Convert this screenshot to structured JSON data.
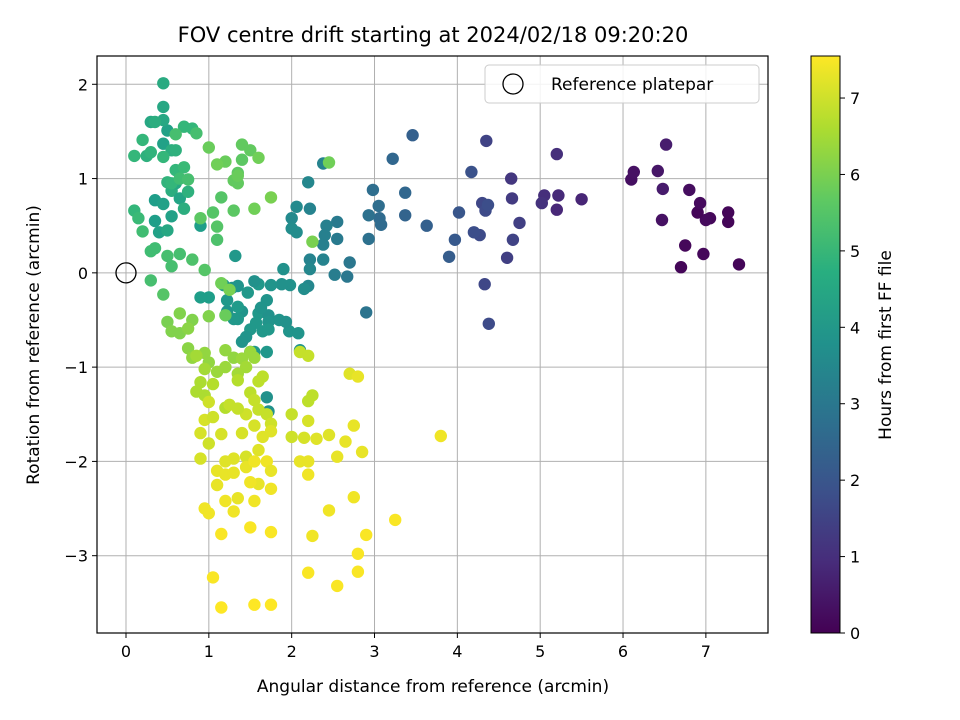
{
  "chart_data": {
    "type": "scatter",
    "title": "FOV centre drift starting at 2024/02/18 09:20:20",
    "xlabel": "Angular distance from reference (arcmin)",
    "ylabel": "Rotation from reference (arcmin)",
    "xlim": [
      -0.35,
      7.75
    ],
    "ylim": [
      -3.82,
      2.3
    ],
    "xticks": [
      0,
      1,
      2,
      3,
      4,
      5,
      6,
      7
    ],
    "yticks": [
      -3,
      -2,
      -1,
      0,
      1,
      2
    ],
    "grid": true,
    "legend": {
      "position": "top-right",
      "entries": [
        "Reference platepar"
      ]
    },
    "reference_point": {
      "x": 0,
      "y": 0
    },
    "colorbar": {
      "label": "Hours from first FF file",
      "colormap": "viridis",
      "range": [
        0,
        7.55
      ],
      "ticks": [
        0,
        1,
        2,
        3,
        4,
        5,
        6,
        7
      ]
    },
    "points": [
      [
        7.4,
        0.09,
        0.1
      ],
      [
        6.7,
        0.06,
        0.1
      ],
      [
        6.97,
        0.2,
        0.15
      ],
      [
        6.75,
        0.29,
        0.15
      ],
      [
        7.27,
        0.54,
        0.1
      ],
      [
        7.27,
        0.64,
        0.1
      ],
      [
        7.05,
        0.58,
        0.15
      ],
      [
        7.0,
        0.56,
        0.2
      ],
      [
        6.9,
        0.64,
        0.1
      ],
      [
        6.93,
        0.74,
        0.2
      ],
      [
        6.8,
        0.88,
        0.25
      ],
      [
        6.47,
        0.56,
        0.35
      ],
      [
        6.1,
        0.99,
        0.3
      ],
      [
        6.13,
        1.07,
        0.35
      ],
      [
        6.42,
        1.08,
        0.45
      ],
      [
        6.48,
        0.89,
        0.55
      ],
      [
        6.52,
        1.36,
        0.6
      ],
      [
        5.5,
        0.78,
        0.8
      ],
      [
        5.2,
        0.67,
        0.85
      ],
      [
        5.22,
        0.82,
        0.9
      ],
      [
        5.05,
        0.82,
        1.0
      ],
      [
        5.02,
        0.74,
        1.1
      ],
      [
        5.2,
        1.26,
        1.0
      ],
      [
        4.65,
        1.0,
        1.2
      ],
      [
        4.66,
        0.79,
        1.3
      ],
      [
        4.75,
        0.53,
        1.4
      ],
      [
        4.67,
        0.35,
        1.5
      ],
      [
        4.6,
        0.16,
        1.4
      ],
      [
        4.35,
        1.4,
        1.5
      ],
      [
        4.3,
        0.74,
        1.6
      ],
      [
        4.34,
        0.66,
        1.7
      ],
      [
        4.37,
        0.72,
        1.8
      ],
      [
        4.27,
        0.4,
        1.7
      ],
      [
        4.2,
        0.43,
        1.8
      ],
      [
        4.33,
        -0.12,
        1.6
      ],
      [
        4.38,
        -0.54,
        1.7
      ],
      [
        4.17,
        1.07,
        1.9
      ],
      [
        4.02,
        0.64,
        2.0
      ],
      [
        3.97,
        0.35,
        2.1
      ],
      [
        3.9,
        0.17,
        2.2
      ],
      [
        3.46,
        1.46,
        2.3
      ],
      [
        3.63,
        0.5,
        2.3
      ],
      [
        3.37,
        0.85,
        2.5
      ],
      [
        3.37,
        0.61,
        2.4
      ],
      [
        3.22,
        1.21,
        2.5
      ],
      [
        3.06,
        0.58,
        2.6
      ],
      [
        3.05,
        0.71,
        2.7
      ],
      [
        3.08,
        0.51,
        2.6
      ],
      [
        2.98,
        0.88,
        2.7
      ],
      [
        2.93,
        0.61,
        2.8
      ],
      [
        2.93,
        0.36,
        2.8
      ],
      [
        2.9,
        -0.42,
        2.9
      ],
      [
        2.7,
        0.11,
        3.0
      ],
      [
        2.67,
        -0.04,
        3.0
      ],
      [
        2.55,
        0.54,
        3.1
      ],
      [
        2.55,
        0.36,
        3.1
      ],
      [
        2.52,
        -0.02,
        3.2
      ],
      [
        2.42,
        0.5,
        3.3
      ],
      [
        2.4,
        0.4,
        3.3
      ],
      [
        2.38,
        0.3,
        3.3
      ],
      [
        2.38,
        0.14,
        3.4
      ],
      [
        2.22,
        0.68,
        3.4
      ],
      [
        2.22,
        0.14,
        3.4
      ],
      [
        2.22,
        0.04,
        3.5
      ],
      [
        2.2,
        -0.14,
        3.5
      ],
      [
        2.2,
        0.96,
        3.5
      ],
      [
        2.38,
        1.16,
        3.4
      ],
      [
        2.06,
        0.7,
        3.6
      ],
      [
        2.0,
        0.58,
        3.6
      ],
      [
        2.0,
        0.47,
        3.7
      ],
      [
        2.06,
        0.43,
        3.7
      ],
      [
        2.15,
        -0.17,
        3.7
      ],
      [
        1.98,
        -0.13,
        3.8
      ],
      [
        1.88,
        -0.12,
        3.8
      ],
      [
        1.9,
        0.04,
        3.8
      ],
      [
        1.85,
        -0.5,
        3.9
      ],
      [
        1.97,
        -0.62,
        3.9
      ],
      [
        2.08,
        -0.64,
        3.9
      ],
      [
        2.1,
        -0.82,
        3.9
      ],
      [
        1.93,
        -0.52,
        3.8
      ],
      [
        1.7,
        -0.29,
        3.9
      ],
      [
        1.6,
        -0.43,
        4.0
      ],
      [
        1.75,
        -0.13,
        3.9
      ],
      [
        1.65,
        -0.62,
        4.0
      ],
      [
        1.72,
        -0.45,
        3.8
      ],
      [
        1.72,
        -0.52,
        3.9
      ],
      [
        1.72,
        -0.6,
        4.0
      ],
      [
        1.7,
        -0.84,
        4.0
      ],
      [
        1.63,
        -0.37,
        3.9
      ],
      [
        1.6,
        -0.12,
        4.0
      ],
      [
        1.55,
        -0.09,
        3.8
      ],
      [
        1.57,
        -0.53,
        4.0
      ],
      [
        1.5,
        -0.6,
        4.0
      ],
      [
        1.45,
        -0.68,
        3.9
      ],
      [
        1.5,
        -0.84,
        3.9
      ],
      [
        1.55,
        -0.84,
        4.0
      ],
      [
        1.47,
        -0.21,
        4.0
      ],
      [
        1.4,
        -0.41,
        3.9
      ],
      [
        1.35,
        -0.49,
        4.0
      ],
      [
        1.3,
        -0.49,
        4.0
      ],
      [
        1.22,
        -0.41,
        3.9
      ],
      [
        1.22,
        -0.29,
        4.0
      ],
      [
        1.28,
        -0.16,
        3.9
      ],
      [
        1.18,
        -0.13,
        4.0
      ],
      [
        1.35,
        -0.14,
        3.9
      ],
      [
        1.35,
        -0.36,
        4.1
      ],
      [
        1.32,
        0.18,
        4.0
      ],
      [
        1.4,
        -0.73,
        3.9
      ],
      [
        1.7,
        -1.32,
        3.8
      ],
      [
        1.72,
        -1.47,
        3.8
      ],
      [
        1.0,
        -0.26,
        4.2
      ],
      [
        0.9,
        -0.26,
        4.2
      ],
      [
        0.9,
        0.5,
        4.2
      ],
      [
        0.35,
        0.77,
        4.2
      ],
      [
        0.45,
        0.73,
        4.3
      ],
      [
        0.55,
        0.6,
        4.3
      ],
      [
        0.4,
        0.43,
        4.3
      ],
      [
        0.5,
        0.45,
        4.5
      ],
      [
        0.35,
        0.55,
        4.2
      ],
      [
        0.45,
        1.37,
        4.3
      ],
      [
        0.5,
        1.51,
        4.3
      ],
      [
        0.45,
        1.62,
        4.5
      ],
      [
        0.45,
        1.76,
        4.5
      ],
      [
        0.45,
        2.01,
        4.6
      ],
      [
        0.3,
        1.6,
        4.5
      ],
      [
        0.35,
        1.6,
        4.7
      ],
      [
        0.55,
        1.3,
        4.7
      ],
      [
        0.6,
        1.3,
        4.8
      ],
      [
        0.55,
        0.87,
        4.7
      ],
      [
        0.6,
        0.95,
        4.5
      ],
      [
        0.65,
        0.79,
        4.4
      ],
      [
        0.75,
        0.86,
        4.8
      ],
      [
        0.7,
        0.68,
        4.7
      ],
      [
        0.5,
        0.96,
        4.9
      ],
      [
        0.55,
        0.95,
        5.0
      ],
      [
        0.6,
        1.09,
        5.0
      ],
      [
        0.7,
        1.12,
        5.1
      ],
      [
        0.65,
        1.0,
        5.2
      ],
      [
        0.75,
        0.99,
        5.3
      ],
      [
        0.25,
        1.24,
        4.8
      ],
      [
        0.3,
        1.28,
        4.9
      ],
      [
        0.45,
        1.23,
        5.0
      ],
      [
        0.7,
        1.55,
        5.0
      ],
      [
        0.8,
        1.53,
        5.0
      ],
      [
        0.6,
        1.47,
        5.3
      ],
      [
        0.85,
        1.48,
        5.3
      ],
      [
        0.2,
        1.41,
        5.0
      ],
      [
        0.1,
        1.24,
        5.0
      ],
      [
        0.1,
        0.66,
        5.0
      ],
      [
        0.15,
        0.58,
        5.1
      ],
      [
        0.2,
        0.44,
        5.2
      ],
      [
        0.3,
        0.23,
        5.2
      ],
      [
        0.35,
        0.26,
        5.2
      ],
      [
        0.5,
        0.18,
        5.3
      ],
      [
        0.65,
        0.2,
        5.3
      ],
      [
        0.3,
        -0.08,
        5.3
      ],
      [
        0.55,
        0.07,
        5.3
      ],
      [
        0.8,
        0.14,
        5.4
      ],
      [
        0.45,
        -0.23,
        5.5
      ],
      [
        0.95,
        0.03,
        5.5
      ],
      [
        1.1,
        0.35,
        5.4
      ],
      [
        1.1,
        0.49,
        5.5
      ],
      [
        1.05,
        0.64,
        5.5
      ],
      [
        1.15,
        0.8,
        5.5
      ],
      [
        1.3,
        0.66,
        5.6
      ],
      [
        0.9,
        0.58,
        5.6
      ],
      [
        1.3,
        0.98,
        5.7
      ],
      [
        1.35,
        1.06,
        5.6
      ],
      [
        1.35,
        0.95,
        5.7
      ],
      [
        1.4,
        1.2,
        5.6
      ],
      [
        1.4,
        1.36,
        5.7
      ],
      [
        1.5,
        1.3,
        5.7
      ],
      [
        1.35,
        1.03,
        5.8
      ],
      [
        1.2,
        1.18,
        5.8
      ],
      [
        1.1,
        1.15,
        5.9
      ],
      [
        1.0,
        1.33,
        5.8
      ],
      [
        1.6,
        1.22,
        5.9
      ],
      [
        1.55,
        0.68,
        5.9
      ],
      [
        1.75,
        0.8,
        6.0
      ],
      [
        2.45,
        1.17,
        5.9
      ],
      [
        2.25,
        0.33,
        6.0
      ],
      [
        1.15,
        -0.11,
        5.9
      ],
      [
        1.2,
        -0.45,
        5.8
      ],
      [
        1.25,
        -0.18,
        6.0
      ],
      [
        1.0,
        -0.46,
        6.1
      ],
      [
        0.8,
        -0.5,
        6.1
      ],
      [
        0.65,
        -0.43,
        6.1
      ],
      [
        0.5,
        -0.52,
        6.0
      ],
      [
        0.55,
        -0.62,
        6.1
      ],
      [
        0.65,
        -0.64,
        6.1
      ],
      [
        0.75,
        -0.59,
        6.2
      ],
      [
        0.75,
        -0.8,
        6.2
      ],
      [
        0.8,
        -0.9,
        6.3
      ],
      [
        0.95,
        -0.85,
        6.3
      ],
      [
        1.0,
        -0.95,
        6.3
      ],
      [
        1.2,
        -0.82,
        6.3
      ],
      [
        1.3,
        -0.9,
        6.3
      ],
      [
        1.4,
        -0.91,
        6.4
      ],
      [
        1.5,
        -0.84,
        6.4
      ],
      [
        1.55,
        -0.9,
        6.4
      ],
      [
        1.45,
        -1.0,
        6.5
      ],
      [
        1.35,
        -1.07,
        6.5
      ],
      [
        1.2,
        -1.0,
        6.4
      ],
      [
        1.1,
        -1.05,
        6.4
      ],
      [
        0.85,
        -0.88,
        6.5
      ],
      [
        0.95,
        -1.02,
        6.5
      ],
      [
        0.9,
        -1.16,
        6.6
      ],
      [
        0.85,
        -1.26,
        6.6
      ],
      [
        0.95,
        -1.3,
        6.6
      ],
      [
        1.05,
        -1.18,
        6.7
      ],
      [
        1.2,
        -1.43,
        6.7
      ],
      [
        1.35,
        -1.14,
        6.7
      ],
      [
        1.5,
        -1.27,
        6.8
      ],
      [
        1.65,
        -1.1,
        6.8
      ],
      [
        1.6,
        -1.15,
        6.8
      ],
      [
        1.55,
        -1.35,
        6.9
      ],
      [
        1.6,
        -1.45,
        6.9
      ],
      [
        1.7,
        -1.5,
        6.9
      ],
      [
        1.75,
        -1.6,
        7.0
      ],
      [
        1.45,
        -1.5,
        7.0
      ],
      [
        1.35,
        -1.44,
        6.9
      ],
      [
        1.25,
        -1.4,
        6.9
      ],
      [
        1.0,
        -1.37,
        7.0
      ],
      [
        0.95,
        -1.56,
        7.1
      ],
      [
        1.05,
        -1.53,
        7.0
      ],
      [
        0.9,
        -1.7,
        7.1
      ],
      [
        1.0,
        -1.81,
        7.0
      ],
      [
        1.15,
        -1.71,
        7.1
      ],
      [
        1.4,
        -1.7,
        7.1
      ],
      [
        1.55,
        -1.62,
        7.1
      ],
      [
        1.65,
        -1.74,
        7.2
      ],
      [
        1.75,
        -1.68,
        7.2
      ],
      [
        1.6,
        -1.88,
        7.2
      ],
      [
        1.45,
        -1.95,
        7.1
      ],
      [
        1.3,
        -1.97,
        7.2
      ],
      [
        1.2,
        -2.0,
        7.2
      ],
      [
        1.1,
        -2.1,
        7.3
      ],
      [
        1.1,
        -2.25,
        7.3
      ],
      [
        1.2,
        -2.14,
        7.3
      ],
      [
        1.3,
        -2.12,
        7.3
      ],
      [
        1.45,
        -2.06,
        7.3
      ],
      [
        1.55,
        -2.0,
        7.4
      ],
      [
        1.7,
        -2.0,
        7.4
      ],
      [
        1.75,
        -2.1,
        7.3
      ],
      [
        1.75,
        -2.29,
        7.4
      ],
      [
        1.6,
        -2.24,
        7.3
      ],
      [
        1.5,
        -2.22,
        7.4
      ],
      [
        1.55,
        -2.42,
        7.4
      ],
      [
        1.35,
        -2.39,
        7.3
      ],
      [
        1.3,
        -2.53,
        7.4
      ],
      [
        1.2,
        -2.42,
        7.4
      ],
      [
        1.0,
        -2.55,
        7.4
      ],
      [
        0.95,
        -2.5,
        7.4
      ],
      [
        1.15,
        -2.77,
        7.5
      ],
      [
        1.5,
        -2.7,
        7.5
      ],
      [
        1.75,
        -2.75,
        7.5
      ],
      [
        0.9,
        -1.97,
        7.1
      ],
      [
        2.0,
        -1.5,
        6.9
      ],
      [
        2.0,
        -1.74,
        7.0
      ],
      [
        2.2,
        -1.57,
        7.1
      ],
      [
        2.2,
        -1.36,
        6.8
      ],
      [
        2.25,
        -1.3,
        6.8
      ],
      [
        2.15,
        -1.75,
        7.1
      ],
      [
        2.3,
        -1.76,
        7.2
      ],
      [
        2.45,
        -1.72,
        7.2
      ],
      [
        2.55,
        -1.95,
        7.3
      ],
      [
        2.65,
        -1.79,
        7.3
      ],
      [
        2.75,
        -1.62,
        7.3
      ],
      [
        2.85,
        -1.9,
        7.3
      ],
      [
        2.7,
        -1.07,
        7.2
      ],
      [
        2.8,
        -1.1,
        7.3
      ],
      [
        2.1,
        -2.0,
        7.3
      ],
      [
        2.2,
        -2.0,
        7.3
      ],
      [
        2.2,
        -2.14,
        7.4
      ],
      [
        2.25,
        -2.79,
        7.4
      ],
      [
        2.45,
        -2.52,
        7.4
      ],
      [
        2.75,
        -2.38,
        7.4
      ],
      [
        2.9,
        -2.78,
        7.5
      ],
      [
        2.8,
        -2.98,
        7.5
      ],
      [
        2.55,
        -3.32,
        7.5
      ],
      [
        2.2,
        -3.18,
        7.5
      ],
      [
        2.8,
        -3.17,
        7.5
      ],
      [
        3.25,
        -2.62,
        7.5
      ],
      [
        3.8,
        -1.73,
        7.4
      ],
      [
        1.05,
        -3.23,
        7.5
      ],
      [
        1.15,
        -3.55,
        7.55
      ],
      [
        1.55,
        -3.52,
        7.55
      ],
      [
        1.75,
        -3.52,
        7.55
      ],
      [
        2.1,
        -0.84,
        6.9
      ],
      [
        2.2,
        -0.88,
        6.9
      ]
    ]
  }
}
